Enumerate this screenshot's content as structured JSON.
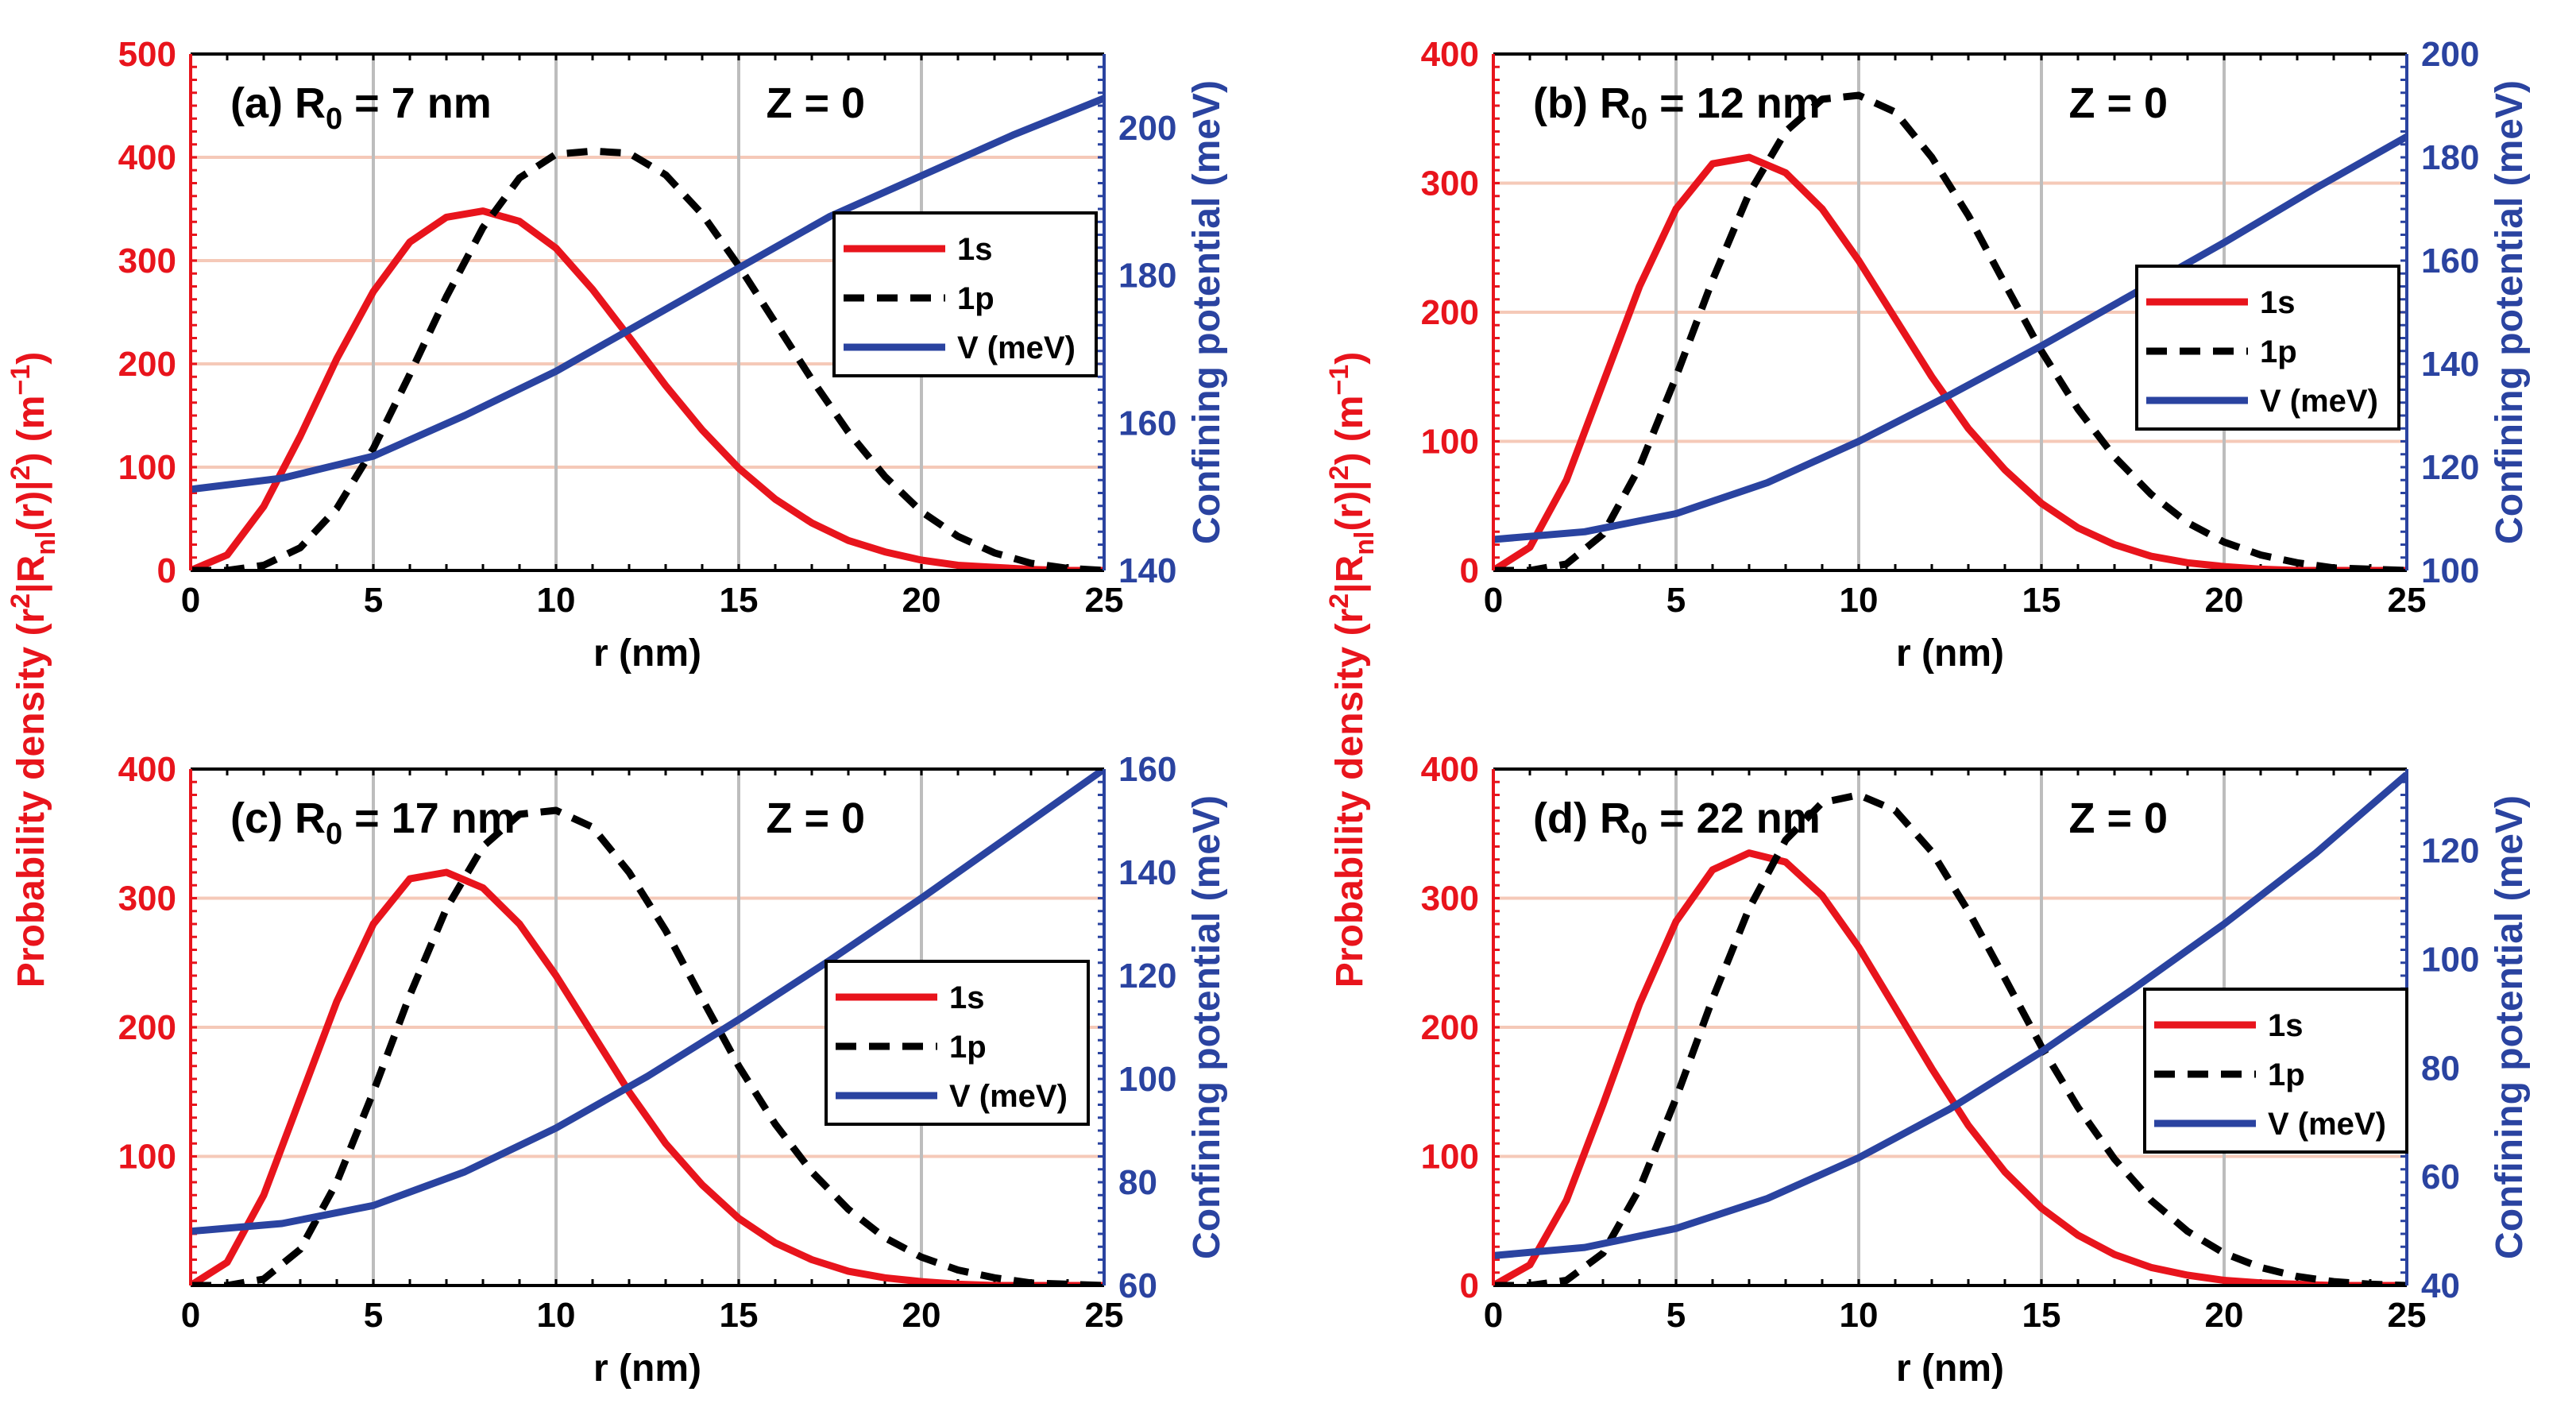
{
  "colors": {
    "s1": "#e8141c",
    "p1": "#000000",
    "V": "#2a43a0",
    "left_axis": "#e8141c",
    "right_axis": "#2a43a0",
    "hgrid": "#f5c9b8",
    "vgrid": "#bdbdbd"
  },
  "chart_data": [
    {
      "type": "line",
      "panel": "(a)",
      "title_prefix": "(a) R",
      "title_sub": "0",
      "title_suffix": " = 7 nm",
      "annotation": "Z = 0",
      "xlabel": "r (nm)",
      "xlim": [
        0,
        25
      ],
      "x_ticks": [
        "0",
        "5",
        "10",
        "15",
        "20",
        "25"
      ],
      "ylim_left": [
        0,
        500
      ],
      "y_ticks_left": [
        "0",
        "100",
        "200",
        "300",
        "400",
        "500"
      ],
      "ylim_right": [
        140,
        210
      ],
      "y_ticks_right": [
        "140",
        "160",
        "180",
        "200"
      ],
      "series": [
        {
          "name": "1s",
          "x": [
            0,
            1,
            2,
            3,
            4,
            5,
            6,
            7,
            8,
            9,
            10,
            11,
            12,
            13,
            14,
            15,
            16,
            17,
            18,
            19,
            20,
            21,
            22,
            23,
            24,
            25
          ],
          "y": [
            0,
            15,
            62,
            130,
            205,
            270,
            318,
            342,
            348,
            338,
            312,
            272,
            226,
            179,
            136,
            99,
            69,
            46,
            29,
            18,
            10,
            5,
            3,
            1,
            0,
            0
          ]
        },
        {
          "name": "1p",
          "x": [
            0,
            1,
            2,
            3,
            4,
            5,
            6,
            7,
            8,
            9,
            10,
            11,
            12,
            13,
            14,
            15,
            16,
            17,
            18,
            19,
            20,
            21,
            22,
            23,
            24,
            25
          ],
          "y": [
            0,
            0,
            5,
            22,
            60,
            118,
            190,
            265,
            332,
            380,
            403,
            406,
            404,
            383,
            345,
            295,
            240,
            185,
            134,
            91,
            57,
            33,
            17,
            7,
            2,
            0
          ]
        },
        {
          "name": "V (meV)",
          "x": [
            0,
            2.5,
            5,
            7.5,
            10,
            12.5,
            15,
            17.5,
            20,
            22.5,
            25
          ],
          "y": [
            151,
            152.5,
            155.5,
            161,
            167,
            174,
            181,
            188,
            193.5,
            199,
            204
          ]
        }
      ],
      "legend": [
        "1s",
        "1p",
        "V (meV)"
      ],
      "legend_position": "right"
    },
    {
      "type": "line",
      "panel": "(b)",
      "title_prefix": "(b) R",
      "title_sub": "0",
      "title_suffix": " = 12 nm",
      "annotation": "Z = 0",
      "xlabel": "r (nm)",
      "xlim": [
        0,
        25
      ],
      "x_ticks": [
        "0",
        "5",
        "10",
        "15",
        "20",
        "25"
      ],
      "ylim_left": [
        0,
        400
      ],
      "y_ticks_left": [
        "0",
        "100",
        "200",
        "300",
        "400"
      ],
      "ylim_right": [
        100,
        200
      ],
      "y_ticks_right": [
        "100",
        "120",
        "140",
        "160",
        "180",
        "200"
      ],
      "series": [
        {
          "name": "1s",
          "x": [
            0,
            1,
            2,
            3,
            4,
            5,
            6,
            7,
            8,
            9,
            10,
            11,
            12,
            13,
            14,
            15,
            16,
            17,
            18,
            19,
            20,
            21,
            22,
            23,
            24,
            25
          ],
          "y": [
            0,
            18,
            70,
            145,
            220,
            280,
            315,
            320,
            308,
            280,
            240,
            195,
            150,
            110,
            78,
            52,
            33,
            20,
            11,
            6,
            3,
            1,
            0,
            0,
            0,
            0
          ]
        },
        {
          "name": "1p",
          "x": [
            0,
            1,
            2,
            3,
            4,
            5,
            6,
            7,
            8,
            9,
            10,
            11,
            12,
            13,
            14,
            15,
            16,
            17,
            18,
            19,
            20,
            21,
            22,
            23,
            24,
            25
          ],
          "y": [
            0,
            0,
            5,
            28,
            80,
            150,
            225,
            292,
            340,
            365,
            368,
            355,
            320,
            275,
            222,
            170,
            125,
            88,
            59,
            37,
            22,
            12,
            6,
            2,
            1,
            0
          ]
        },
        {
          "name": "V (meV)",
          "x": [
            0,
            2.5,
            5,
            7.5,
            10,
            12.5,
            15,
            17.5,
            20,
            22.5,
            25
          ],
          "y": [
            106,
            107.5,
            111,
            117,
            125,
            134,
            143.5,
            153.5,
            163.5,
            174,
            184
          ]
        }
      ],
      "legend": [
        "1s",
        "1p",
        "V (meV)"
      ],
      "legend_position": "right"
    },
    {
      "type": "line",
      "panel": "(c)",
      "title_prefix": "(c) R",
      "title_sub": "0",
      "title_suffix": " = 17 nm",
      "annotation": "Z = 0",
      "xlabel": "r (nm)",
      "xlim": [
        0,
        25
      ],
      "x_ticks": [
        "0",
        "5",
        "10",
        "15",
        "20",
        "25"
      ],
      "ylim_left": [
        0,
        400
      ],
      "y_ticks_left": [
        "100",
        "200",
        "300",
        "400"
      ],
      "ylim_right": [
        60,
        160
      ],
      "y_ticks_right": [
        "60",
        "80",
        "100",
        "120",
        "140",
        "160"
      ],
      "series": [
        {
          "name": "1s",
          "x": [
            0,
            1,
            2,
            3,
            4,
            5,
            6,
            7,
            8,
            9,
            10,
            11,
            12,
            13,
            14,
            15,
            16,
            17,
            18,
            19,
            20,
            21,
            22,
            23,
            24,
            25
          ],
          "y": [
            0,
            18,
            70,
            145,
            220,
            280,
            315,
            320,
            308,
            280,
            240,
            195,
            150,
            110,
            78,
            52,
            33,
            20,
            11,
            6,
            3,
            1,
            0,
            0,
            0,
            0
          ]
        },
        {
          "name": "1p",
          "x": [
            0,
            1,
            2,
            3,
            4,
            5,
            6,
            7,
            8,
            9,
            10,
            11,
            12,
            13,
            14,
            15,
            16,
            17,
            18,
            19,
            20,
            21,
            22,
            23,
            24,
            25
          ],
          "y": [
            0,
            0,
            5,
            28,
            80,
            150,
            225,
            292,
            340,
            365,
            368,
            355,
            320,
            275,
            222,
            170,
            125,
            88,
            59,
            37,
            22,
            12,
            6,
            2,
            1,
            0
          ]
        },
        {
          "name": "V (meV)",
          "x": [
            0,
            2.5,
            5,
            7.5,
            10,
            12.5,
            15,
            17.5,
            20,
            22.5,
            25
          ],
          "y": [
            70.5,
            72,
            75.5,
            82,
            90.5,
            100.5,
            111.5,
            123,
            135,
            147.5,
            160
          ]
        }
      ],
      "legend": [
        "1s",
        "1p",
        "V (meV)"
      ],
      "legend_position": "right"
    },
    {
      "type": "line",
      "panel": "(d)",
      "title_prefix": "(d) R",
      "title_sub": "0",
      "title_suffix": " = 22 nm",
      "annotation": "Z = 0",
      "xlabel": "r (nm)",
      "xlim": [
        0,
        25
      ],
      "x_ticks": [
        "0",
        "5",
        "10",
        "15",
        "20",
        "25"
      ],
      "ylim_left": [
        0,
        400
      ],
      "y_ticks_left": [
        "0",
        "100",
        "200",
        "300",
        "400"
      ],
      "ylim_right": [
        40,
        135
      ],
      "y_ticks_right": [
        "40",
        "60",
        "80",
        "100",
        "120"
      ],
      "series": [
        {
          "name": "1s",
          "x": [
            0,
            1,
            2,
            3,
            4,
            5,
            6,
            7,
            8,
            9,
            10,
            11,
            12,
            13,
            14,
            15,
            16,
            17,
            18,
            19,
            20,
            21,
            22,
            23,
            24,
            25
          ],
          "y": [
            0,
            16,
            66,
            140,
            218,
            282,
            322,
            335,
            328,
            302,
            262,
            215,
            168,
            124,
            88,
            60,
            39,
            24,
            14,
            8,
            4,
            2,
            1,
            0,
            0,
            0
          ]
        },
        {
          "name": "1p",
          "x": [
            0,
            1,
            2,
            3,
            4,
            5,
            6,
            7,
            8,
            9,
            10,
            11,
            12,
            13,
            14,
            15,
            16,
            17,
            18,
            19,
            20,
            21,
            22,
            23,
            24,
            25
          ],
          "y": [
            0,
            0,
            4,
            25,
            75,
            145,
            222,
            292,
            345,
            374,
            380,
            368,
            336,
            290,
            238,
            185,
            138,
            98,
            66,
            42,
            25,
            14,
            7,
            3,
            1,
            0
          ]
        },
        {
          "name": "V (meV)",
          "x": [
            0,
            2.5,
            5,
            7.5,
            10,
            12.5,
            15,
            17.5,
            20,
            22.5,
            25
          ],
          "y": [
            45.5,
            47,
            50.5,
            56,
            63.5,
            72.5,
            83,
            94.5,
            106.5,
            119.5,
            134
          ]
        }
      ],
      "legend": [
        "1s",
        "1p",
        "V (meV)"
      ],
      "legend_position": "right"
    }
  ],
  "shared_ylabel_left": {
    "pre": "Probability density (r",
    "sup1": "2",
    "mid1": "|R",
    "sub": "nl",
    "mid2": "(r)|",
    "sup2": "2",
    "mid3": ") (m",
    "sup3": "−1",
    "post": ")"
  },
  "ylabel_right": "Confining potential (meV)"
}
